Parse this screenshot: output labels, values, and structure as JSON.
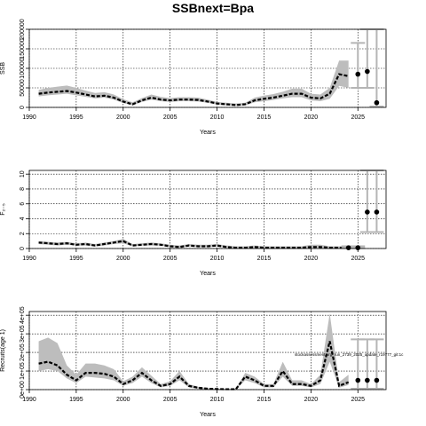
{
  "figure": {
    "title": "SSBnext=Bpa",
    "annotation": "stockassessment.org, run_2739_2025_update_r19777_git:1c"
  },
  "chart_data": [
    {
      "type": "line",
      "panel": "ssb",
      "ylabel": "SSB",
      "xlabel": "Years",
      "xlim": [
        1990,
        2028
      ],
      "ylim": [
        0,
        200000
      ],
      "xticks": [
        1990,
        1995,
        2000,
        2005,
        2010,
        2015,
        2020,
        2025
      ],
      "yticks": [
        0,
        50000,
        100000,
        150000,
        200000
      ],
      "ytick_labels": [
        "0",
        "50000",
        "100000",
        "150000",
        "200000"
      ],
      "grid": true,
      "x": [
        1991,
        1992,
        1993,
        1994,
        1995,
        1996,
        1997,
        1998,
        1999,
        2000,
        2001,
        2002,
        2003,
        2004,
        2005,
        2006,
        2007,
        2008,
        2009,
        2010,
        2011,
        2012,
        2013,
        2014,
        2015,
        2016,
        2017,
        2018,
        2019,
        2020,
        2021,
        2022,
        2023,
        2024
      ],
      "values": [
        35000,
        38000,
        40000,
        42000,
        38000,
        33000,
        28000,
        30000,
        25000,
        15000,
        8000,
        18000,
        25000,
        20000,
        18000,
        20000,
        20000,
        19000,
        15000,
        10000,
        8000,
        6000,
        8000,
        18000,
        22000,
        25000,
        30000,
        35000,
        35000,
        25000,
        23000,
        35000,
        85000,
        80000
      ],
      "low": [
        28000,
        31000,
        33000,
        35000,
        31000,
        27000,
        23000,
        25000,
        20000,
        11000,
        5000,
        14000,
        20000,
        16000,
        14000,
        16000,
        16000,
        15000,
        12000,
        7000,
        5000,
        4000,
        5000,
        13000,
        16000,
        19000,
        23000,
        26000,
        26000,
        18000,
        16000,
        22000,
        55000,
        50000
      ],
      "high": [
        45000,
        50000,
        53000,
        56000,
        50000,
        43000,
        37000,
        39000,
        33000,
        21000,
        13000,
        24000,
        33000,
        27000,
        24000,
        26000,
        26000,
        25000,
        20000,
        14000,
        12000,
        10000,
        12000,
        25000,
        30000,
        34000,
        40000,
        48000,
        48000,
        35000,
        33000,
        50000,
        120000,
        120000
      ],
      "forecast": [
        {
          "x": 2025,
          "value": 85000,
          "low": 50000,
          "high": 165000
        },
        {
          "x": 2026,
          "value": 92000,
          "low": 50000,
          "high": 200000
        },
        {
          "x": 2027,
          "value": 12000,
          "low": 2000,
          "high": 200000
        }
      ]
    },
    {
      "type": "line",
      "panel": "f",
      "ylabel": "F₂₋₅",
      "xlabel": "Years",
      "xlim": [
        1990,
        2028
      ],
      "ylim": [
        0,
        10.5
      ],
      "xticks": [
        1990,
        1995,
        2000,
        2005,
        2010,
        2015,
        2020,
        2025
      ],
      "yticks": [
        0,
        2,
        4,
        6,
        8,
        10
      ],
      "ytick_labels": [
        "0",
        "2",
        "4",
        "6",
        "8",
        "10"
      ],
      "grid": true,
      "x": [
        1991,
        1992,
        1993,
        1994,
        1995,
        1996,
        1997,
        1998,
        1999,
        2000,
        2001,
        2002,
        2003,
        2004,
        2005,
        2006,
        2007,
        2008,
        2009,
        2010,
        2011,
        2012,
        2013,
        2014,
        2015,
        2016,
        2017,
        2018,
        2019,
        2020,
        2021,
        2022,
        2023,
        2024
      ],
      "values": [
        0.8,
        0.7,
        0.6,
        0.7,
        0.5,
        0.6,
        0.4,
        0.6,
        0.8,
        1.0,
        0.4,
        0.5,
        0.6,
        0.5,
        0.3,
        0.2,
        0.4,
        0.3,
        0.3,
        0.4,
        0.2,
        0.1,
        0.1,
        0.2,
        0.1,
        0.1,
        0.1,
        0.1,
        0.1,
        0.2,
        0.2,
        0.1,
        0.1,
        0.1
      ],
      "low": [
        0.6,
        0.5,
        0.4,
        0.5,
        0.4,
        0.4,
        0.3,
        0.4,
        0.6,
        0.7,
        0.3,
        0.4,
        0.4,
        0.4,
        0.2,
        0.1,
        0.3,
        0.2,
        0.2,
        0.3,
        0.1,
        0.05,
        0.05,
        0.1,
        0.05,
        0.05,
        0.05,
        0.05,
        0.05,
        0.1,
        0.1,
        0.05,
        0.05,
        0.05
      ],
      "high": [
        1.0,
        0.9,
        0.8,
        0.9,
        0.7,
        0.8,
        0.6,
        0.8,
        1.0,
        1.3,
        0.6,
        0.7,
        0.8,
        0.7,
        0.5,
        0.4,
        0.6,
        0.5,
        0.5,
        0.6,
        0.4,
        0.3,
        0.3,
        0.4,
        0.3,
        0.3,
        0.3,
        0.3,
        0.3,
        0.5,
        0.5,
        0.3,
        0.3,
        0.3
      ],
      "forecast": [
        {
          "x": 2024,
          "value": 0.1,
          "low": 0.05,
          "high": 0.3
        },
        {
          "x": 2025,
          "value": 0.1,
          "low": 0.05,
          "high": 0.3
        },
        {
          "x": 2026,
          "value": 4.9,
          "low": 2.2,
          "high": 10.5
        },
        {
          "x": 2027,
          "value": 4.9,
          "low": 2.2,
          "high": 10.5
        }
      ]
    },
    {
      "type": "line",
      "panel": "recruitment",
      "ylabel": "Recruits(age 1)",
      "xlabel": "Years",
      "xlim": [
        1990,
        2028
      ],
      "ylim": [
        0,
        420000
      ],
      "xticks": [
        1990,
        1995,
        2000,
        2005,
        2010,
        2015,
        2020,
        2025
      ],
      "yticks": [
        0,
        100000,
        200000,
        300000,
        400000
      ],
      "ytick_labels": [
        "0e+00",
        "1e+05",
        "2e+05",
        "3e+05",
        "4e+05"
      ],
      "grid": true,
      "x": [
        1991,
        1992,
        1993,
        1994,
        1995,
        1996,
        1997,
        1998,
        1999,
        2000,
        2001,
        2002,
        2003,
        2004,
        2005,
        2006,
        2007,
        2008,
        2009,
        2010,
        2011,
        2012,
        2013,
        2014,
        2015,
        2016,
        2017,
        2018,
        2019,
        2020,
        2021,
        2022,
        2023,
        2024
      ],
      "values": [
        140000,
        150000,
        130000,
        80000,
        50000,
        90000,
        90000,
        85000,
        70000,
        30000,
        50000,
        90000,
        50000,
        20000,
        30000,
        70000,
        20000,
        10000,
        5000,
        3000,
        2000,
        2000,
        70000,
        50000,
        20000,
        20000,
        100000,
        30000,
        30000,
        20000,
        50000,
        260000,
        20000,
        40000
      ],
      "low": [
        100000,
        110000,
        100000,
        60000,
        35000,
        70000,
        65000,
        60000,
        50000,
        20000,
        35000,
        70000,
        35000,
        12000,
        20000,
        50000,
        12000,
        5000,
        2000,
        1000,
        500,
        500,
        50000,
        35000,
        12000,
        12000,
        70000,
        20000,
        20000,
        12000,
        30000,
        150000,
        10000,
        25000
      ],
      "high": [
        260000,
        280000,
        250000,
        130000,
        80000,
        140000,
        140000,
        130000,
        110000,
        45000,
        70000,
        120000,
        75000,
        30000,
        45000,
        100000,
        30000,
        15000,
        8000,
        5000,
        3500,
        3500,
        90000,
        70000,
        30000,
        30000,
        150000,
        50000,
        50000,
        30000,
        80000,
        410000,
        40000,
        80000
      ],
      "forecast": [
        {
          "x": 2025,
          "value": 50000,
          "low": 5000,
          "high": 270000
        },
        {
          "x": 2026,
          "value": 50000,
          "low": 5000,
          "high": 270000
        },
        {
          "x": 2027,
          "value": 50000,
          "low": 5000,
          "high": 270000
        }
      ]
    }
  ]
}
